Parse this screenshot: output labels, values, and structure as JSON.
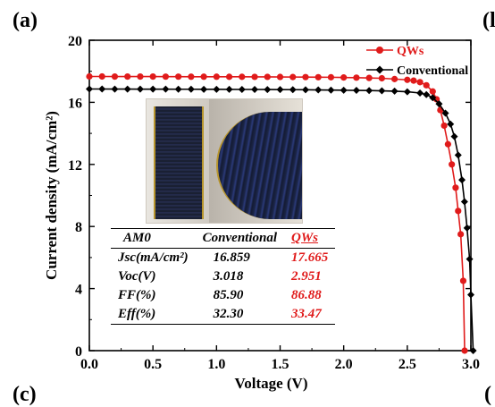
{
  "panel_labels": {
    "a": "(a)",
    "b_fragment": "(l",
    "c_fragment": "(c)",
    "d_fragment": "("
  },
  "chart_data": {
    "type": "line",
    "xlabel": "Voltage (V)",
    "ylabel": "Current density (mA/cm²)",
    "xlim": [
      0,
      3.0
    ],
    "ylim": [
      0,
      20
    ],
    "x_ticks": [
      "0.0",
      "0.5",
      "1.0",
      "1.5",
      "2.0",
      "2.5",
      "3.0"
    ],
    "y_ticks": [
      "0",
      "4",
      "8",
      "12",
      "16",
      "20"
    ],
    "legend_position": "top-right",
    "series": [
      {
        "name": "QWs",
        "color": "#e01b1b",
        "marker": "circle",
        "x": [
          0.0,
          0.1,
          0.2,
          0.3,
          0.4,
          0.5,
          0.6,
          0.7,
          0.8,
          0.9,
          1.0,
          1.1,
          1.2,
          1.3,
          1.4,
          1.5,
          1.6,
          1.7,
          1.8,
          1.9,
          2.0,
          2.1,
          2.2,
          2.3,
          2.4,
          2.5,
          2.55,
          2.6,
          2.65,
          2.7,
          2.73,
          2.76,
          2.79,
          2.82,
          2.85,
          2.88,
          2.9,
          2.92,
          2.94,
          2.951
        ],
        "y": [
          17.665,
          17.665,
          17.66,
          17.66,
          17.66,
          17.66,
          17.655,
          17.655,
          17.65,
          17.65,
          17.65,
          17.645,
          17.645,
          17.64,
          17.64,
          17.635,
          17.63,
          17.625,
          17.62,
          17.615,
          17.6,
          17.59,
          17.57,
          17.55,
          17.5,
          17.45,
          17.4,
          17.3,
          17.1,
          16.7,
          16.2,
          15.5,
          14.5,
          13.3,
          12.0,
          10.5,
          9.0,
          7.5,
          4.5,
          0.0
        ]
      },
      {
        "name": "Conventional",
        "color": "#000000",
        "marker": "diamond",
        "x": [
          0.0,
          0.1,
          0.2,
          0.3,
          0.4,
          0.5,
          0.6,
          0.7,
          0.8,
          0.9,
          1.0,
          1.1,
          1.2,
          1.3,
          1.4,
          1.5,
          1.6,
          1.7,
          1.8,
          1.9,
          2.0,
          2.1,
          2.2,
          2.3,
          2.4,
          2.5,
          2.6,
          2.65,
          2.7,
          2.75,
          2.8,
          2.84,
          2.87,
          2.9,
          2.93,
          2.95,
          2.97,
          2.99,
          3.0,
          3.018
        ],
        "y": [
          16.859,
          16.859,
          16.855,
          16.855,
          16.85,
          16.85,
          16.85,
          16.845,
          16.845,
          16.84,
          16.84,
          16.835,
          16.83,
          16.83,
          16.825,
          16.82,
          16.815,
          16.81,
          16.8,
          16.79,
          16.78,
          16.77,
          16.76,
          16.74,
          16.72,
          16.68,
          16.6,
          16.5,
          16.3,
          15.9,
          15.3,
          14.6,
          13.8,
          12.6,
          11.0,
          9.6,
          7.9,
          5.9,
          3.6,
          0.0
        ]
      }
    ]
  },
  "inset_photo": {
    "description_icon": "solar-cell-photo"
  },
  "params_table": {
    "headers": [
      "AM0",
      "Conventional",
      "QWs"
    ],
    "rows": [
      {
        "label": "Jsc(mA/cm²)",
        "conventional": "16.859",
        "qws": "17.665"
      },
      {
        "label": "Voc(V)",
        "conventional": "3.018",
        "qws": "2.951"
      },
      {
        "label": "FF(%)",
        "conventional": "85.90",
        "qws": "86.88"
      },
      {
        "label": "Eff(%)",
        "conventional": "32.30",
        "qws": "33.47"
      }
    ]
  }
}
